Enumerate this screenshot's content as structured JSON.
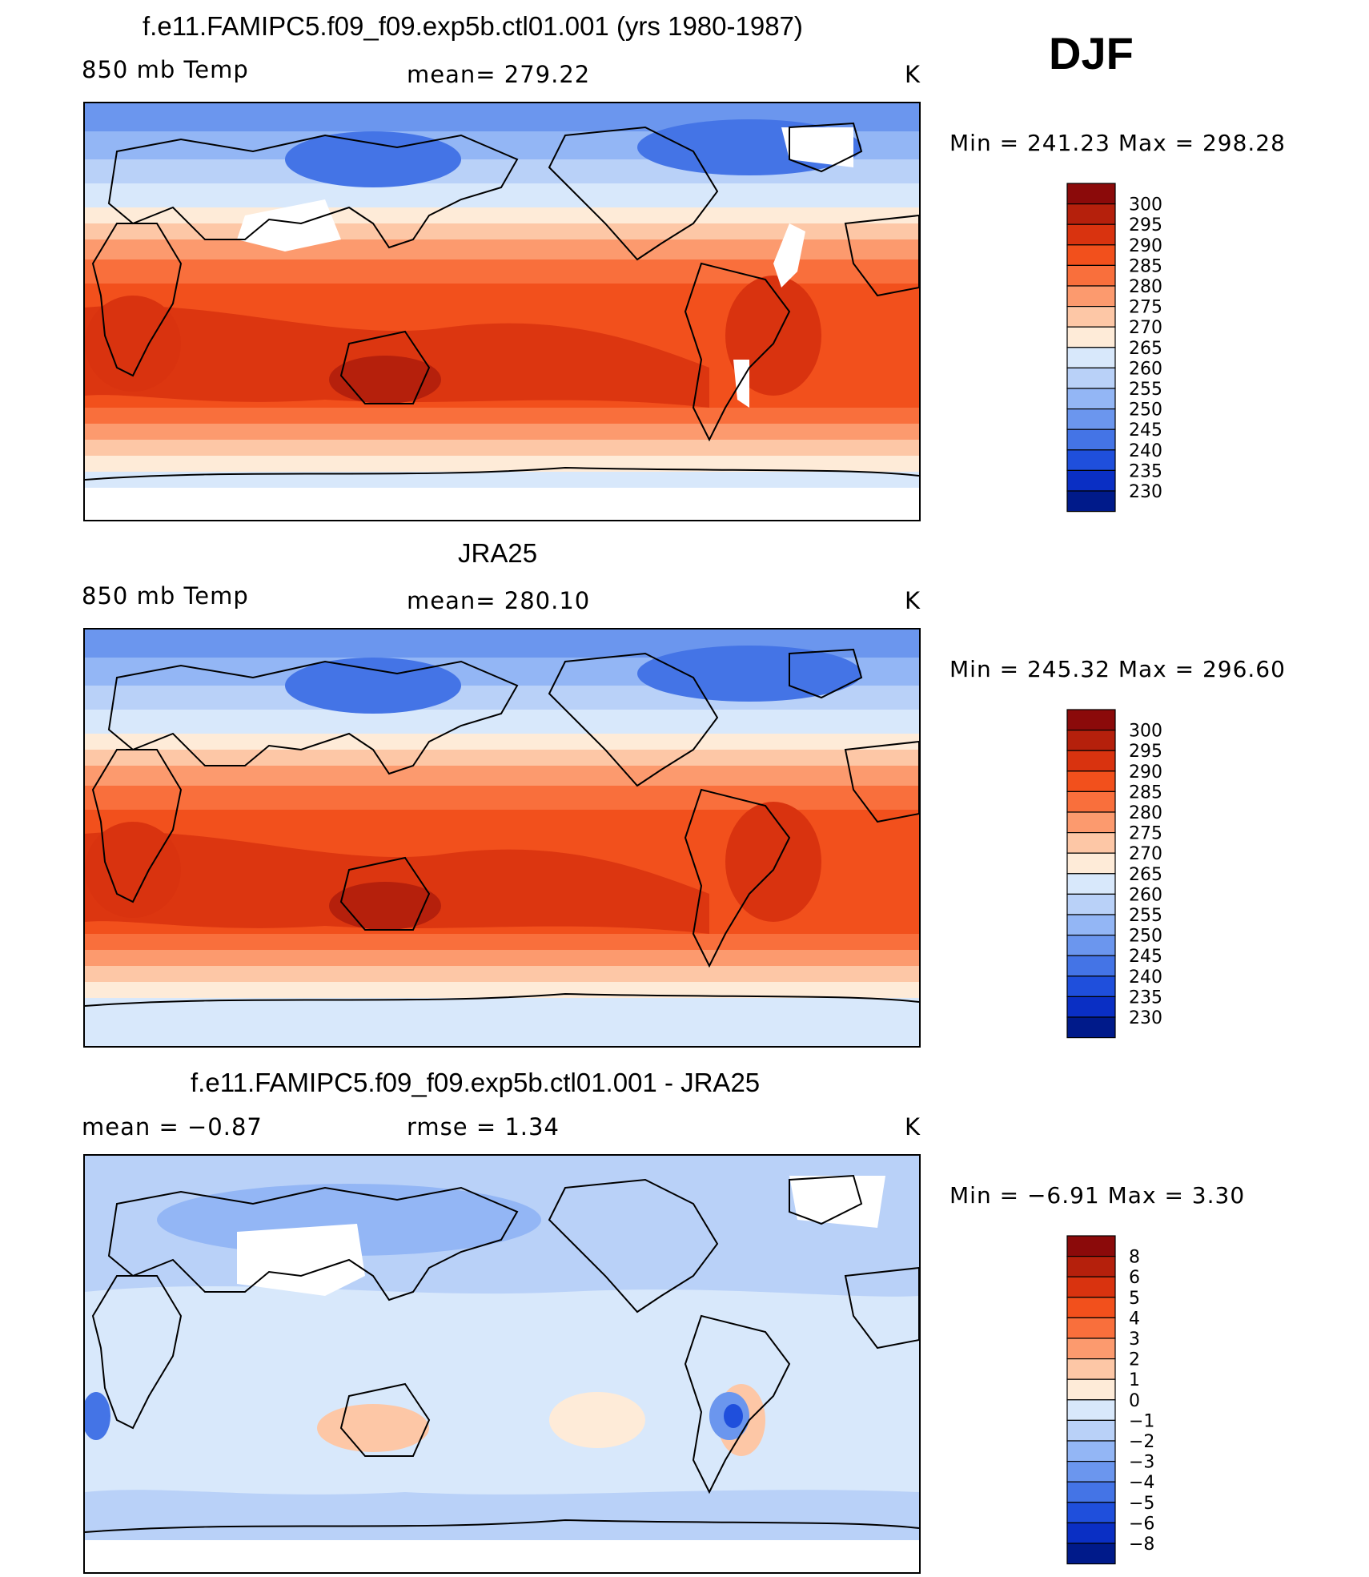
{
  "header": {
    "season": "DJF"
  },
  "panels": [
    {
      "id": "model",
      "title": "f.e11.FAMIPC5.f09_f09.exp5b.ctl01.001 (yrs 1980-1987)",
      "left_label": "850 mb Temp",
      "center_label": "mean=  279.22",
      "units": "K",
      "minmax": "Min  =  241.23  Max  =  298.28",
      "colorbar_labels": [
        "300",
        "295",
        "290",
        "285",
        "280",
        "275",
        "270",
        "265",
        "260",
        "255",
        "250",
        "245",
        "240",
        "235",
        "230"
      ],
      "colorbar_colors": [
        "#8b0a0a",
        "#b5200c",
        "#d9330f",
        "#f2501c",
        "#f96f3c",
        "#fc9a6e",
        "#fdc7a6",
        "#feebd8",
        "#d8e8fb",
        "#b9d1f8",
        "#93b6f5",
        "#6b96ee",
        "#4474e6",
        "#1f4fdc",
        "#0a2fc4",
        "#001a8a"
      ]
    },
    {
      "id": "obs",
      "title": "JRA25",
      "left_label": "850 mb Temp",
      "center_label": "mean=  280.10",
      "units": "K",
      "minmax": "Min  =  245.32  Max  =  296.60",
      "colorbar_labels": [
        "300",
        "295",
        "290",
        "285",
        "280",
        "275",
        "270",
        "265",
        "260",
        "255",
        "250",
        "245",
        "240",
        "235",
        "230"
      ],
      "colorbar_colors": [
        "#8b0a0a",
        "#b5200c",
        "#d9330f",
        "#f2501c",
        "#f96f3c",
        "#fc9a6e",
        "#fdc7a6",
        "#feebd8",
        "#d8e8fb",
        "#b9d1f8",
        "#93b6f5",
        "#6b96ee",
        "#4474e6",
        "#1f4fdc",
        "#0a2fc4",
        "#001a8a"
      ]
    },
    {
      "id": "diff",
      "title": "f.e11.FAMIPC5.f09_f09.exp5b.ctl01.001 - JRA25",
      "left_label": "mean =     −0.87",
      "center_label": "rmse =     1.34",
      "units": "K",
      "minmax": "Min  =    −6.91  Max  =      3.30",
      "colorbar_labels": [
        "8",
        "6",
        "5",
        "4",
        "3",
        "2",
        "1",
        "0",
        "−1",
        "−2",
        "−3",
        "−4",
        "−5",
        "−6",
        "−8"
      ],
      "colorbar_colors": [
        "#8b0a0a",
        "#b5200c",
        "#d9330f",
        "#f2501c",
        "#f96f3c",
        "#fc9a6e",
        "#fdc7a6",
        "#feebd8",
        "#d8e8fb",
        "#b9d1f8",
        "#93b6f5",
        "#6b96ee",
        "#4474e6",
        "#1f4fdc",
        "#0a2fc4",
        "#001a8a"
      ]
    }
  ],
  "chart_data": [
    {
      "type": "heatmap",
      "title": "f.e11.FAMIPC5.f09_f09.exp5b.ctl01.001 (yrs 1980-1987)",
      "variable": "850 mb Temp",
      "units": "K",
      "mean": 279.22,
      "min": 241.23,
      "max": 298.28,
      "contour_levels": [
        230,
        235,
        240,
        245,
        250,
        255,
        260,
        265,
        270,
        275,
        280,
        285,
        290,
        295,
        300
      ],
      "season": "DJF",
      "projection": "global cylindrical equidistant, Pacific-centered"
    },
    {
      "type": "heatmap",
      "title": "JRA25",
      "variable": "850 mb Temp",
      "units": "K",
      "mean": 280.1,
      "min": 245.32,
      "max": 296.6,
      "contour_levels": [
        230,
        235,
        240,
        245,
        250,
        255,
        260,
        265,
        270,
        275,
        280,
        285,
        290,
        295,
        300
      ],
      "season": "DJF"
    },
    {
      "type": "heatmap",
      "title": "f.e11.FAMIPC5.f09_f09.exp5b.ctl01.001 - JRA25",
      "units": "K",
      "mean": -0.87,
      "rmse": 1.34,
      "min": -6.91,
      "max": 3.3,
      "contour_levels": [
        -8,
        -6,
        -5,
        -4,
        -3,
        -2,
        -1,
        0,
        1,
        2,
        3,
        4,
        5,
        6,
        8
      ],
      "season": "DJF"
    }
  ]
}
